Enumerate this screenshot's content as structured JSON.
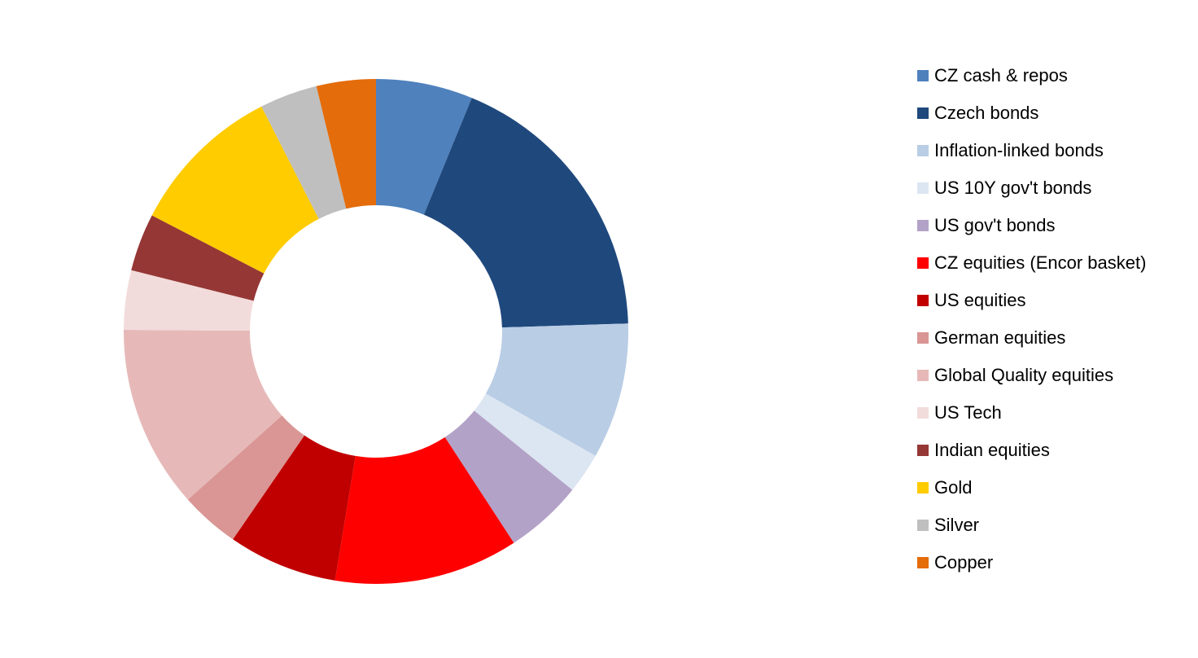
{
  "chart_data": {
    "type": "donut",
    "categories": [
      "CZ cash & repos",
      "Czech bonds",
      "Inflation-linked bonds",
      "US 10Y gov't bonds",
      "US gov't bonds",
      "CZ equities (Encor basket)",
      "US equities",
      "German equities",
      "Global Quality equities",
      "US Tech",
      "Indian equities",
      "Gold",
      "Silver",
      "Copper"
    ],
    "values": [
      6.2,
      18.3,
      8.7,
      2.6,
      5,
      11.8,
      7,
      3.8,
      11.7,
      3.8,
      3.7,
      9.9,
      3.7,
      3.8
    ],
    "colors": [
      "#4f81bd",
      "#1f497d",
      "#b9cde5",
      "#dce6f2",
      "#b3a2c7",
      "#ff0000",
      "#c00000",
      "#d99694",
      "#e6b9b8",
      "#f2dcdb",
      "#953735",
      "#ffcc00",
      "#bfbfbf",
      "#e46c0a"
    ],
    "legend": "right"
  }
}
